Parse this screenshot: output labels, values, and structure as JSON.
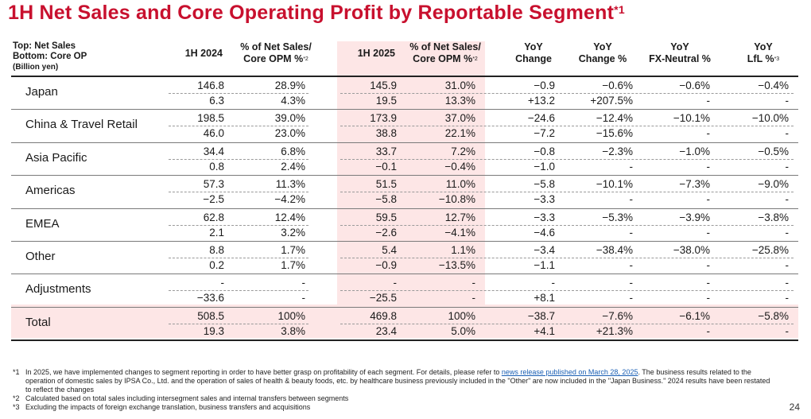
{
  "title": "1H Net Sales and Core Operating Profit by Reportable Segment",
  "title_marker": "*1",
  "unit_label": {
    "line1": "Top: Net Sales",
    "line2": "Bottom: Core OP",
    "line3": "(Billion yen)"
  },
  "headers": {
    "h2024": "1H 2024",
    "pct2024_l1": "% of Net Sales/",
    "pct2024_l2": "Core OPM %",
    "pct2024_mark": "*2",
    "h2025": "1H 2025",
    "pct2025_l1": "% of Net Sales/",
    "pct2025_l2": "Core OPM %",
    "pct2025_mark": "*2",
    "yoy_l1": "YoY",
    "yoy_l2": "Change",
    "yoyp_l1": "YoY",
    "yoyp_l2": "Change %",
    "fx_l1": "YoY",
    "fx_l2": "FX-Neutral %",
    "lfl_l1": "YoY",
    "lfl_l2": "LfL %",
    "lfl_mark": "*3"
  },
  "rows": [
    {
      "name": "Japan",
      "top": [
        "146.8",
        "28.9%",
        "145.9",
        "31.0%",
        "−0.9",
        "−0.6%",
        "−0.6%",
        "−0.4%"
      ],
      "bot": [
        "6.3",
        "4.3%",
        "19.5",
        "13.3%",
        "+13.2",
        "+207.5%",
        "-",
        "-"
      ]
    },
    {
      "name": "China & Travel Retail",
      "top": [
        "198.5",
        "39.0%",
        "173.9",
        "37.0%",
        "−24.6",
        "−12.4%",
        "−10.1%",
        "−10.0%"
      ],
      "bot": [
        "46.0",
        "23.0%",
        "38.8",
        "22.1%",
        "−7.2",
        "−15.6%",
        "-",
        "-"
      ]
    },
    {
      "name": "Asia Pacific",
      "top": [
        "34.4",
        "6.8%",
        "33.7",
        "7.2%",
        "−0.8",
        "−2.3%",
        "−1.0%",
        "−0.5%"
      ],
      "bot": [
        "0.8",
        "2.4%",
        "−0.1",
        "−0.4%",
        "−1.0",
        "-",
        "-",
        "-"
      ]
    },
    {
      "name": "Americas",
      "top": [
        "57.3",
        "11.3%",
        "51.5",
        "11.0%",
        "−5.8",
        "−10.1%",
        "−7.3%",
        "−9.0%"
      ],
      "bot": [
        "−2.5",
        "−4.2%",
        "−5.8",
        "−10.8%",
        "−3.3",
        "-",
        "-",
        "-"
      ]
    },
    {
      "name": "EMEA",
      "top": [
        "62.8",
        "12.4%",
        "59.5",
        "12.7%",
        "−3.3",
        "−5.3%",
        "−3.9%",
        "−3.8%"
      ],
      "bot": [
        "2.1",
        "3.2%",
        "−2.6",
        "−4.1%",
        "−4.6",
        "-",
        "-",
        "-"
      ]
    },
    {
      "name": "Other",
      "top": [
        "8.8",
        "1.7%",
        "5.4",
        "1.1%",
        "−3.4",
        "−38.4%",
        "−38.0%",
        "−25.8%"
      ],
      "bot": [
        "0.2",
        "1.7%",
        "−0.9",
        "−13.5%",
        "−1.1",
        "-",
        "-",
        "-"
      ]
    },
    {
      "name": "Adjustments",
      "top": [
        "-",
        "-",
        "-",
        "-",
        "-",
        "-",
        "-",
        "-"
      ],
      "bot": [
        "−33.6",
        "-",
        "−25.5",
        "-",
        "+8.1",
        "-",
        "-",
        "-"
      ]
    },
    {
      "name": "Total",
      "top": [
        "508.5",
        "100%",
        "469.8",
        "100%",
        "−38.7",
        "−7.6%",
        "−6.1%",
        "−5.8%"
      ],
      "bot": [
        "19.3",
        "3.8%",
        "23.4",
        "5.0%",
        "+4.1",
        "+21.3%",
        "-",
        "-"
      ]
    }
  ],
  "notes": {
    "n1_mark": "*1",
    "n1_pre": "In 2025, we have implemented changes to segment reporting in order to have better grasp on profitability of each segment. For details, please refer to ",
    "n1_link": "news release published on March 28, 2025",
    "n1_post": ". The business results related to the operation of domestic sales by IPSA Co., Ltd. and the operation of sales of health & beauty foods, etc. by healthcare business previously included in the \"Other\" are now included in the \"Japan Business.\" 2024 results have been restated to reflect the changes",
    "n2_mark": "*2",
    "n2": "Calculated based on total sales including intersegment sales and internal transfers between segments",
    "n3_mark": "*3",
    "n3": "Excluding the impacts of foreign exchange translation, business transfers and acquisitions"
  },
  "page_number": "24",
  "colors": {
    "title": "#c8102e",
    "band": "#fde6e6"
  }
}
